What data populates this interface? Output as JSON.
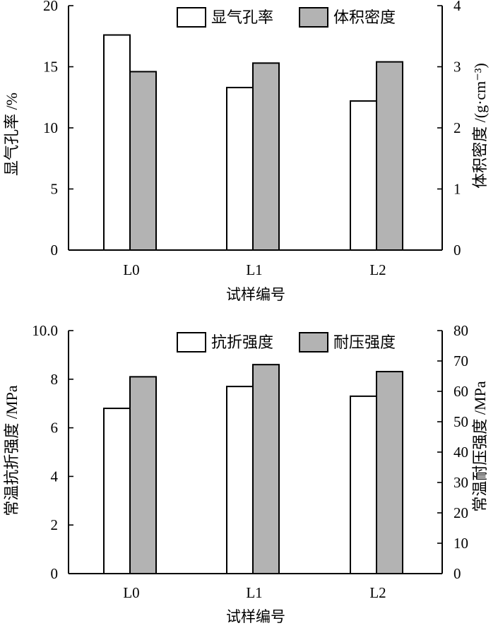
{
  "chart_data": [
    {
      "type": "bar",
      "categories": [
        "L0",
        "L1",
        "L2"
      ],
      "xlabel": "试样编号",
      "ylabel_left": "显气孔率 /%",
      "ylabel_right": "体积密度 /(g·cm⁻³)",
      "ylim_left": [
        0,
        20
      ],
      "yticks_left": [
        "0",
        "5",
        "10",
        "15",
        "20"
      ],
      "ylim_right": [
        0,
        4
      ],
      "yticks_right": [
        "0",
        "1",
        "2",
        "3",
        "4"
      ],
      "series": [
        {
          "name": "显气孔率",
          "axis": "left",
          "color": "#ffffff",
          "values": [
            17.6,
            13.3,
            12.2
          ]
        },
        {
          "name": "体积密度",
          "axis": "right",
          "color": "#b3b3b3",
          "values": [
            2.92,
            3.06,
            3.08
          ]
        }
      ]
    },
    {
      "type": "bar",
      "categories": [
        "L0",
        "L1",
        "L2"
      ],
      "xlabel": "试样编号",
      "ylabel_left": "常温抗折强度 /MPa",
      "ylabel_right": "常温耐压强度 /MPa",
      "ylim_left": [
        0,
        10
      ],
      "yticks_left": [
        "0",
        "2",
        "4",
        "6",
        "8",
        "10.0"
      ],
      "ylim_right": [
        0,
        80
      ],
      "yticks_right": [
        "0",
        "10",
        "20",
        "30",
        "40",
        "50",
        "60",
        "70",
        "80"
      ],
      "series": [
        {
          "name": "抗折强度",
          "axis": "left",
          "color": "#ffffff",
          "values": [
            6.8,
            7.7,
            7.3
          ]
        },
        {
          "name": "耐压强度",
          "axis": "right",
          "color": "#b3b3b3",
          "values": [
            64.8,
            68.8,
            66.5
          ]
        }
      ]
    }
  ]
}
